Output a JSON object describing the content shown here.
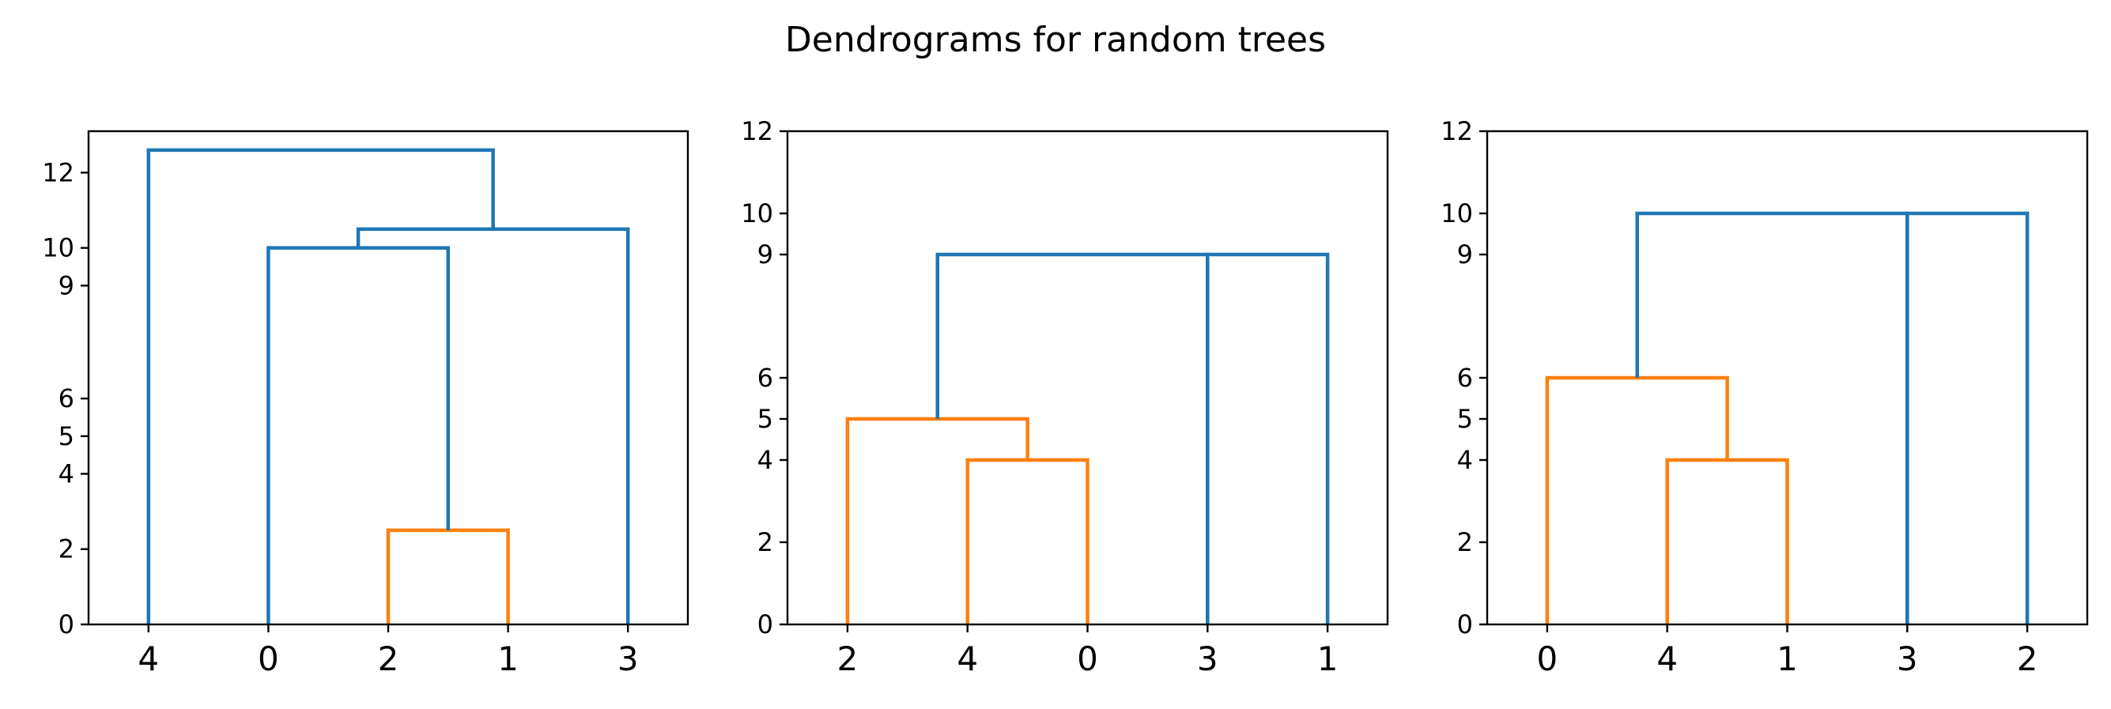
{
  "figure": {
    "title": "Dendrograms for random trees"
  },
  "colors": {
    "C0": "#1f77b4",
    "C1": "#ff7f0e"
  },
  "chart_data": [
    {
      "type": "dendrogram",
      "leaf_order": [
        "4",
        "0",
        "2",
        "1",
        "3"
      ],
      "yticks": [
        0,
        2,
        4,
        5,
        6,
        9,
        10,
        12
      ],
      "ylim": [
        0,
        13.1
      ],
      "links": [
        {
          "left_x": 2,
          "right_x": 3,
          "left_y": 0,
          "right_y": 0,
          "height": 2.5,
          "color": "C1"
        },
        {
          "left_x": 1,
          "right_x": 2.5,
          "left_y": 0,
          "right_y": 2.5,
          "height": 10,
          "color": "C0"
        },
        {
          "left_x": 1.75,
          "right_x": 4,
          "left_y": 10,
          "right_y": 0,
          "height": 10.5,
          "color": "C0"
        },
        {
          "left_x": 0,
          "right_x": 2.875,
          "left_y": 0,
          "right_y": 10.5,
          "height": 12.6,
          "color": "C0"
        }
      ]
    },
    {
      "type": "dendrogram",
      "leaf_order": [
        "2",
        "4",
        "0",
        "3",
        "1"
      ],
      "yticks": [
        0,
        2,
        4,
        5,
        6,
        9,
        10,
        12
      ],
      "ylim": [
        0,
        12
      ],
      "links": [
        {
          "left_x": 1,
          "right_x": 2,
          "left_y": 0,
          "right_y": 0,
          "height": 4,
          "color": "C1"
        },
        {
          "left_x": 0,
          "right_x": 1.5,
          "left_y": 0,
          "right_y": 4,
          "height": 5,
          "color": "C1"
        },
        {
          "left_x": 0.75,
          "right_x": 3,
          "left_y": 5,
          "right_y": 0,
          "height": 9,
          "color": "C0"
        },
        {
          "left_x": 3,
          "right_x": 4,
          "left_y": 0,
          "right_y": 0,
          "height": 9,
          "color": "C0"
        }
      ]
    },
    {
      "type": "dendrogram",
      "leaf_order": [
        "0",
        "4",
        "1",
        "3",
        "2"
      ],
      "yticks": [
        0,
        2,
        4,
        5,
        6,
        9,
        10,
        12
      ],
      "ylim": [
        0,
        12
      ],
      "links": [
        {
          "left_x": 1,
          "right_x": 2,
          "left_y": 0,
          "right_y": 0,
          "height": 4,
          "color": "C1"
        },
        {
          "left_x": 0,
          "right_x": 1.5,
          "left_y": 0,
          "right_y": 4,
          "height": 6,
          "color": "C1"
        },
        {
          "left_x": 0.75,
          "right_x": 3,
          "left_y": 6,
          "right_y": 0,
          "height": 10,
          "color": "C0"
        },
        {
          "left_x": 3,
          "right_x": 4,
          "left_y": 0,
          "right_y": 0,
          "height": 10,
          "color": "C0"
        }
      ]
    }
  ]
}
